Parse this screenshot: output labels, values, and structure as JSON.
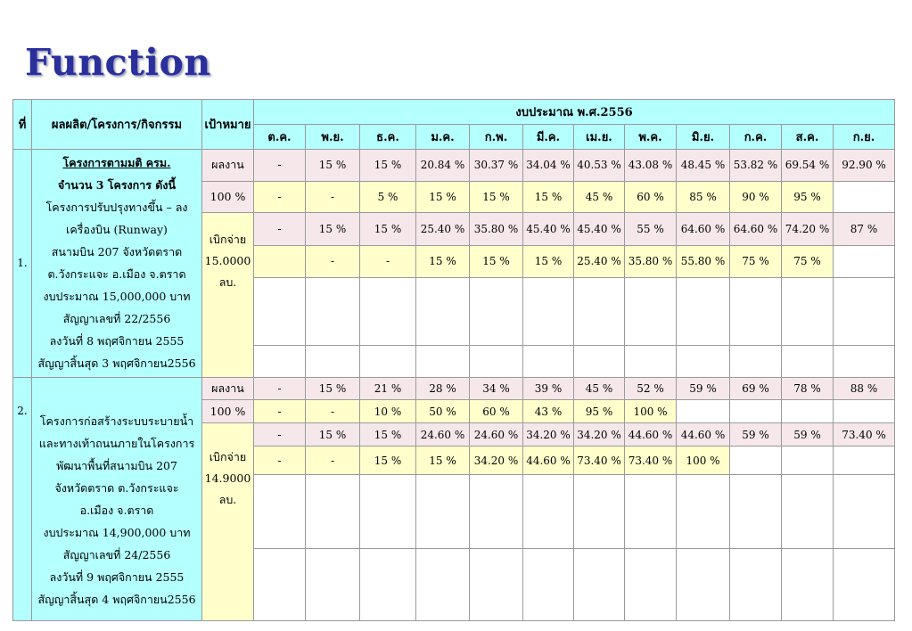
{
  "title": "Function",
  "header": {
    "no": "ที่",
    "project": "ผลผลิต/โครงการ/กิจกรรม",
    "target": "เป้าหมาย",
    "budget_year": "งบประมาณ พ.ศ.2556",
    "months": [
      "ต.ค.",
      "พ.ย.",
      "ธ.ค.",
      "ม.ค.",
      "ก.พ.",
      "มี.ค.",
      "เม.ย.",
      "พ.ค.",
      "มิ.ย.",
      "ก.ค.",
      "ส.ค.",
      "ก.ย."
    ]
  },
  "colors": {
    "cyan": "#b4ffff",
    "pink": "#f6e8ea",
    "yellow": "#ffffcc",
    "title": "#2b2f9a"
  },
  "projects": [
    {
      "no": "1.",
      "lines": [
        "โครงการตามมติ ครม.",
        "จำนวน 3 โครงการ ดังนี้",
        "โครงการปรับปรุงทางขึ้น – ลง",
        "เครื่องบิน (Runway)",
        "สนามบิน 207 จังหวัดตราด",
        "ต.วังกระแจะ อ.เมือง จ.ตราด",
        "งบประมาณ 15,000,000 บาท",
        "สัญญาเลขที่ 22/2556",
        "ลงวันที่ 8 พฤศจิกายน 2555",
        "สัญญาสิ้นสุด 3 พฤศจิกายน2556"
      ],
      "work_label": "ผลงาน",
      "work_target": "100 %",
      "work_plan": [
        "-",
        "15 %",
        "15 %",
        "20.84 %",
        "30.37 %",
        "34.04 %",
        "40.53 %",
        "43.08 %",
        "48.45 %",
        "53.82 %",
        "69.54 %",
        "92.90 %"
      ],
      "work_actual": [
        "-",
        "-",
        "5 %",
        "15 %",
        "15 %",
        "15 %",
        "45 %",
        "60 %",
        "85 %",
        "90 %",
        "95 %",
        ""
      ],
      "disb_label": "เบิกจ่าย",
      "disb_amount": "15.0000",
      "disb_unit": "ลบ.",
      "disb_plan": [
        "-",
        "15 %",
        "15 %",
        "25.40 %",
        "35.80 %",
        "45.40 %",
        "45.40 %",
        "55 %",
        "64.60 %",
        "64.60 %",
        "74.20 %",
        "87 %"
      ],
      "disb_actual": [
        "",
        "-",
        "-",
        "15 %",
        "15 %",
        "15 %",
        "25.40 %",
        "35.80 %",
        "55.80 %",
        "75 %",
        "75 %",
        ""
      ]
    },
    {
      "no": "2.",
      "lines": [
        "โครงการก่อสร้างระบบระบายน้ำ",
        "และทางเท้าถนนภายในโครงการ",
        "พัฒนาพื้นที่สนามบิน 207",
        "จังหวัดตราด ต.วังกระแจะ",
        "อ.เมือง จ.ตราด",
        "งบประมาณ 14,900,000 บาท",
        "สัญญาเลขที่ 24/2556",
        "ลงวันที่ 9 พฤศจิกายน 2555",
        "สัญญาสิ้นสุด 4 พฤศจิกายน2556"
      ],
      "work_label": "ผลงาน",
      "work_target": "100 %",
      "work_plan": [
        "-",
        "15 %",
        "21 %",
        "28 %",
        "34 %",
        "39 %",
        "45 %",
        "52 %",
        "59 %",
        "69 %",
        "78 %",
        "88 %"
      ],
      "work_actual": [
        "-",
        "-",
        "10 %",
        "50 %",
        "60 %",
        "43 %",
        "95 %",
        "100 %",
        "",
        "",
        "",
        ""
      ],
      "disb_label": "เบิกจ่าย",
      "disb_amount": "14.9000",
      "disb_unit": "ลบ.",
      "disb_plan": [
        "-",
        "15 %",
        "15 %",
        "24.60 %",
        "24.60 %",
        "34.20 %",
        "34.20 %",
        "44.60 %",
        "44.60 %",
        "59 %",
        "59 %",
        "73.40 %"
      ],
      "disb_actual": [
        "-",
        "-",
        "15 %",
        "15 %",
        "34.20 %",
        "44.60 %",
        "73.40 %",
        "73.40 %",
        "100 %",
        "",
        "",
        ""
      ]
    }
  ]
}
